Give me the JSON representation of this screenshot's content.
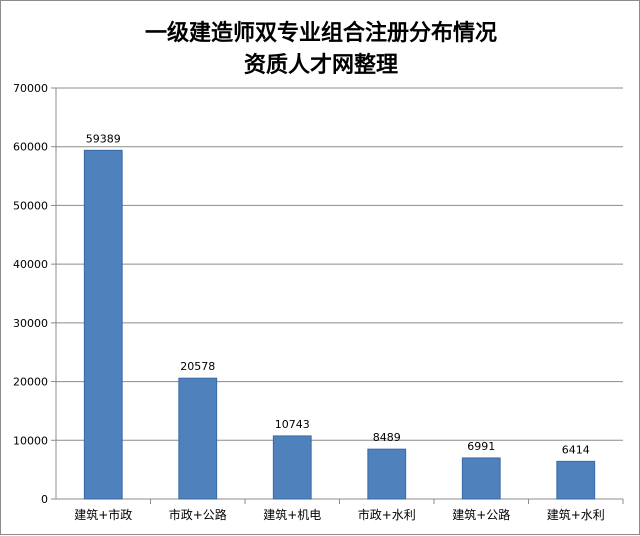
{
  "chart_data": {
    "type": "bar",
    "title": "一级建造师双专业组合注册分布情况",
    "subtitle": "资质人才网整理",
    "categories": [
      "建筑+市政",
      "市政+公路",
      "建筑+机电",
      "市政+水利",
      "建筑+公路",
      "建筑+水利"
    ],
    "values": [
      59389,
      20578,
      10743,
      8489,
      6991,
      6414
    ],
    "ylim": [
      0,
      70000
    ],
    "yticks": [
      0,
      10000,
      20000,
      30000,
      40000,
      50000,
      60000,
      70000
    ],
    "grid": true,
    "legend": "none",
    "bar_color": "#4f81bd",
    "bar_edge_color": "#3a6aa6"
  }
}
